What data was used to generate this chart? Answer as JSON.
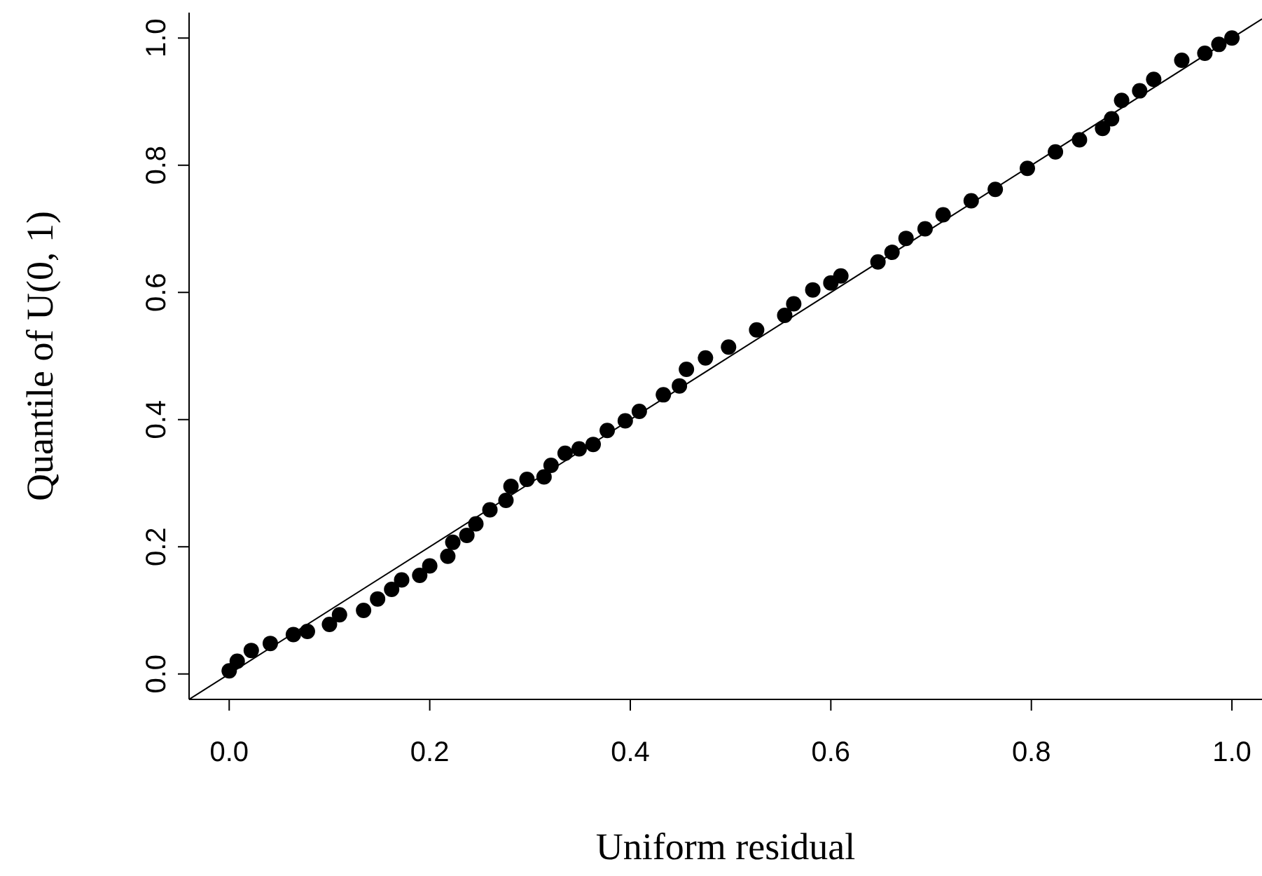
{
  "chart_data": {
    "type": "scatter",
    "xlabel": "Uniform residual",
    "ylabel": "Quantile of U(0, 1)",
    "xlim": [
      -0.04,
      1.03
    ],
    "ylim": [
      -0.04,
      1.04
    ],
    "xticks": [
      {
        "value": 0,
        "label": "0.0"
      },
      0.2,
      0.4,
      0.6,
      0.8,
      {
        "value": 1,
        "label": "1.0"
      }
    ],
    "yticks": [
      {
        "value": 0,
        "label": "0.0"
      },
      0.2,
      0.4,
      0.6,
      0.8,
      {
        "value": 1,
        "label": "1.0"
      }
    ],
    "grid": false,
    "marker": "circle",
    "series": [
      {
        "color": "#000000",
        "x": [
          0,
          0.008,
          0.022,
          0.041,
          0.064,
          0.078,
          0.1,
          0.11,
          0.134,
          0.148,
          0.162,
          0.172,
          0.19,
          0.2,
          0.218,
          0.223,
          0.237,
          0.246,
          0.26,
          0.276,
          0.281,
          0.297,
          0.314,
          0.321,
          0.335,
          0.349,
          0.363,
          0.377,
          0.395,
          0.409,
          0.433,
          0.449,
          0.456,
          0.475,
          0.498,
          0.526,
          0.554,
          0.563,
          0.582,
          0.6,
          0.61,
          0.647,
          0.661,
          0.675,
          0.694,
          0.712,
          0.74,
          0.764,
          0.796,
          0.824,
          0.848,
          0.871,
          0.88,
          0.89,
          0.908,
          0.922,
          0.95,
          0.973,
          0.987,
          1.0
        ],
        "values": [
          0.005,
          0.02,
          0.037,
          0.048,
          0.062,
          0.067,
          0.078,
          0.093,
          0.1,
          0.118,
          0.133,
          0.148,
          0.155,
          0.17,
          0.185,
          0.207,
          0.218,
          0.236,
          0.258,
          0.273,
          0.295,
          0.306,
          0.31,
          0.328,
          0.347,
          0.354,
          0.361,
          0.383,
          0.398,
          0.413,
          0.439,
          0.453,
          0.479,
          0.497,
          0.514,
          0.541,
          0.564,
          0.582,
          0.604,
          0.615,
          0.626,
          0.648,
          0.663,
          0.685,
          0.7,
          0.722,
          0.744,
          0.762,
          0.795,
          0.821,
          0.84,
          0.858,
          0.873,
          0.902,
          0.917,
          0.935,
          0.965,
          0.976,
          0.99,
          1.0
        ]
      },
      {
        "type": "line",
        "color": "#000000",
        "marker": "none",
        "line_style": "solid",
        "x": [
          -0.04,
          1.03
        ],
        "values": [
          -0.04,
          1.03
        ]
      }
    ]
  }
}
